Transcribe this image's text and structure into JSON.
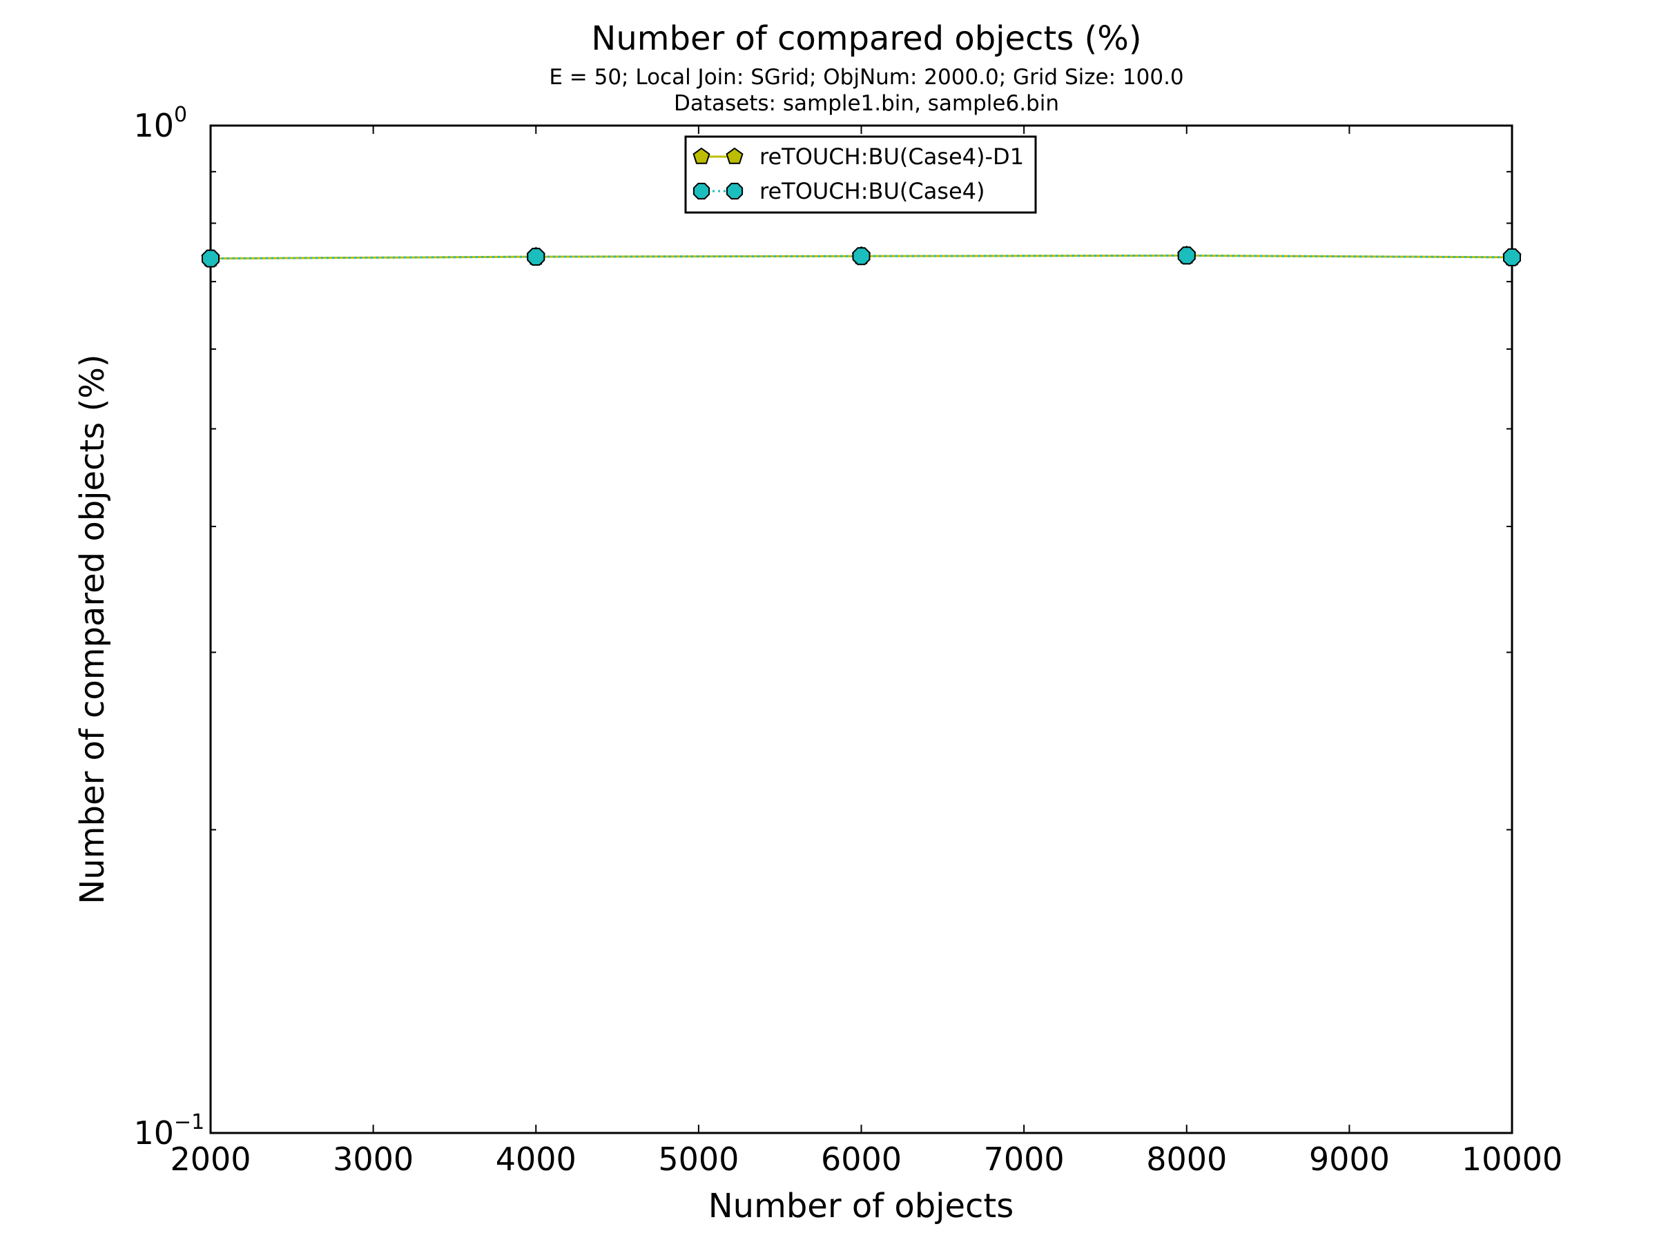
{
  "chart_data": {
    "type": "line",
    "title": "Number of compared objects (%)",
    "subtitle_lines": [
      "E = 50; Local Join: SGrid; ObjNum: 2000.0; Grid Size: 100.0",
      "Datasets: sample1.bin, sample6.bin"
    ],
    "xlabel": "Number of objects",
    "ylabel": "Number of compared objects (%)",
    "xlim": [
      2000,
      10000
    ],
    "ylim": [
      0.1,
      1.0
    ],
    "yscale": "log",
    "grid": false,
    "legend_position": "top-center",
    "x_ticks": [
      2000,
      3000,
      4000,
      5000,
      6000,
      7000,
      8000,
      9000,
      10000
    ],
    "x_tick_labels": [
      "2000",
      "3000",
      "4000",
      "5000",
      "6000",
      "7000",
      "8000",
      "9000",
      "10000"
    ],
    "y_tick_labels": [
      {
        "value": 1.0,
        "base": "10",
        "exp": "0"
      },
      {
        "value": 0.1,
        "base": "10",
        "exp": "−1"
      }
    ],
    "x": [
      2000,
      4000,
      6000,
      8000,
      10000
    ],
    "series": [
      {
        "name": "reTOUCH:BU(Case4)-D1",
        "values": [
          0.738,
          0.741,
          0.742,
          0.743,
          0.74
        ],
        "color": "#bdbd00",
        "marker": "pentagon",
        "line_style": "solid"
      },
      {
        "name": "reTOUCH:BU(Case4)",
        "values": [
          0.738,
          0.741,
          0.742,
          0.743,
          0.74
        ],
        "color": "#1cbdbd",
        "marker": "octagon",
        "line_style": "dotted"
      }
    ]
  }
}
